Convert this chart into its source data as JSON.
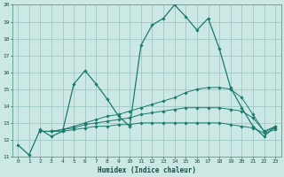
{
  "title": "",
  "xlabel": "Humidex (Indice chaleur)",
  "ylabel": "",
  "xlim": [
    -0.5,
    23.5
  ],
  "ylim": [
    11,
    20
  ],
  "yticks": [
    11,
    12,
    13,
    14,
    15,
    16,
    17,
    18,
    19,
    20
  ],
  "xticks": [
    0,
    1,
    2,
    3,
    4,
    5,
    6,
    7,
    8,
    9,
    10,
    11,
    12,
    13,
    14,
    15,
    16,
    17,
    18,
    19,
    20,
    21,
    22,
    23
  ],
  "bg_color": "#cce8e4",
  "grid_color": "#a0c8c4",
  "line_color": "#1a7a6e",
  "line1_x": [
    0,
    1,
    2,
    3,
    4,
    5,
    6,
    7,
    8,
    9,
    10,
    11,
    12,
    13,
    14,
    15,
    16,
    17,
    18,
    19,
    20,
    21,
    22,
    23
  ],
  "line1_y": [
    11.7,
    11.1,
    12.6,
    12.2,
    12.5,
    15.3,
    16.1,
    15.3,
    14.4,
    13.4,
    12.8,
    17.6,
    18.8,
    19.2,
    20.0,
    19.3,
    18.5,
    19.2,
    17.4,
    15.1,
    13.9,
    12.8,
    12.2,
    12.8
  ],
  "line2_x": [
    2,
    3,
    4,
    5,
    6,
    7,
    8,
    9,
    10,
    11,
    12,
    13,
    14,
    15,
    16,
    17,
    18,
    19,
    20,
    21,
    22,
    23
  ],
  "line2_y": [
    12.5,
    12.5,
    12.6,
    12.8,
    13.0,
    13.2,
    13.4,
    13.5,
    13.7,
    13.9,
    14.1,
    14.3,
    14.5,
    14.8,
    15.0,
    15.1,
    15.1,
    15.0,
    14.5,
    13.5,
    12.5,
    12.8
  ],
  "line3_x": [
    2,
    3,
    4,
    5,
    6,
    7,
    8,
    9,
    10,
    11,
    12,
    13,
    14,
    15,
    16,
    17,
    18,
    19,
    20,
    21,
    22,
    23
  ],
  "line3_y": [
    12.5,
    12.5,
    12.6,
    12.7,
    12.9,
    13.0,
    13.1,
    13.2,
    13.3,
    13.5,
    13.6,
    13.7,
    13.8,
    13.9,
    13.9,
    13.9,
    13.9,
    13.8,
    13.7,
    13.3,
    12.5,
    12.7
  ],
  "line4_x": [
    2,
    3,
    4,
    5,
    6,
    7,
    8,
    9,
    10,
    11,
    12,
    13,
    14,
    15,
    16,
    17,
    18,
    19,
    20,
    21,
    22,
    23
  ],
  "line4_y": [
    12.5,
    12.5,
    12.5,
    12.6,
    12.7,
    12.8,
    12.8,
    12.9,
    12.9,
    13.0,
    13.0,
    13.0,
    13.0,
    13.0,
    13.0,
    13.0,
    13.0,
    12.9,
    12.8,
    12.7,
    12.4,
    12.6
  ]
}
